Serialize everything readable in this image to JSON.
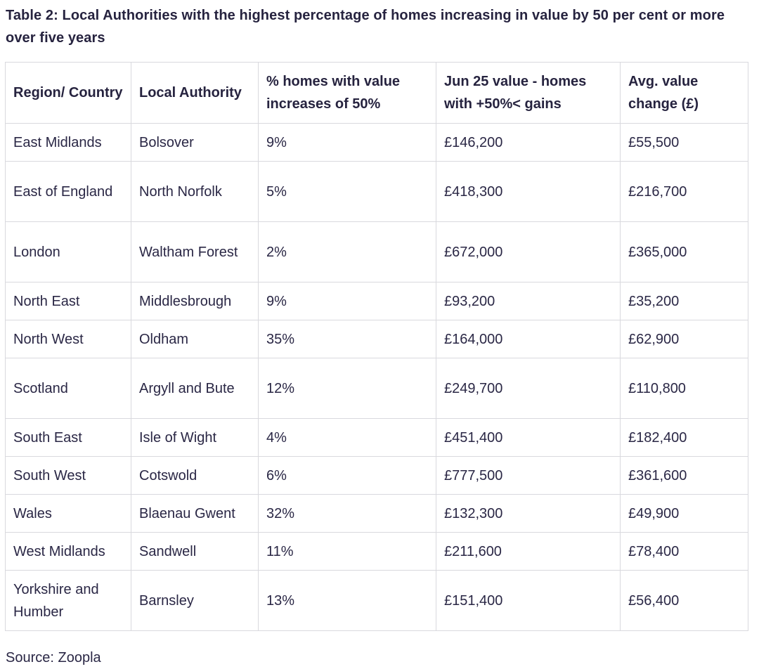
{
  "caption": "Table 2: Local Authorities with the highest percentage of homes increasing in value by 50 per cent or more over five years",
  "table": {
    "headers": [
      "Region/ Country",
      "Local Authority",
      "% homes with value increases of 50%",
      "Jun 25 value - homes with +50%< gains",
      "Avg. value change (£)"
    ],
    "rows": [
      [
        "East Midlands",
        "Bolsover",
        "9%",
        "£146,200",
        "£55,500"
      ],
      [
        "East of England",
        "North Norfolk",
        "5%",
        "£418,300",
        "£216,700"
      ],
      [
        "London",
        "Waltham Forest",
        "2%",
        "£672,000",
        "£365,000"
      ],
      [
        "North East",
        "Middlesbrough",
        "9%",
        "£93,200",
        "£35,200"
      ],
      [
        "North West",
        "Oldham",
        "35%",
        "£164,000",
        "£62,900"
      ],
      [
        "Scotland",
        "Argyll and Bute",
        "12%",
        "£249,700",
        "£110,800"
      ],
      [
        "South East",
        "Isle of Wight",
        "4%",
        "£451,400",
        "£182,400"
      ],
      [
        "South West",
        "Cotswold",
        "6%",
        "£777,500",
        "£361,600"
      ],
      [
        "Wales",
        "Blaenau Gwent",
        "32%",
        "£132,300",
        "£49,900"
      ],
      [
        "West Midlands",
        "Sandwell",
        "11%",
        "£211,600",
        "£78,400"
      ],
      [
        "Yorkshire and Humber",
        "Barnsley",
        "13%",
        "£151,400",
        "£56,400"
      ]
    ]
  },
  "source": "Source: Zoopla"
}
